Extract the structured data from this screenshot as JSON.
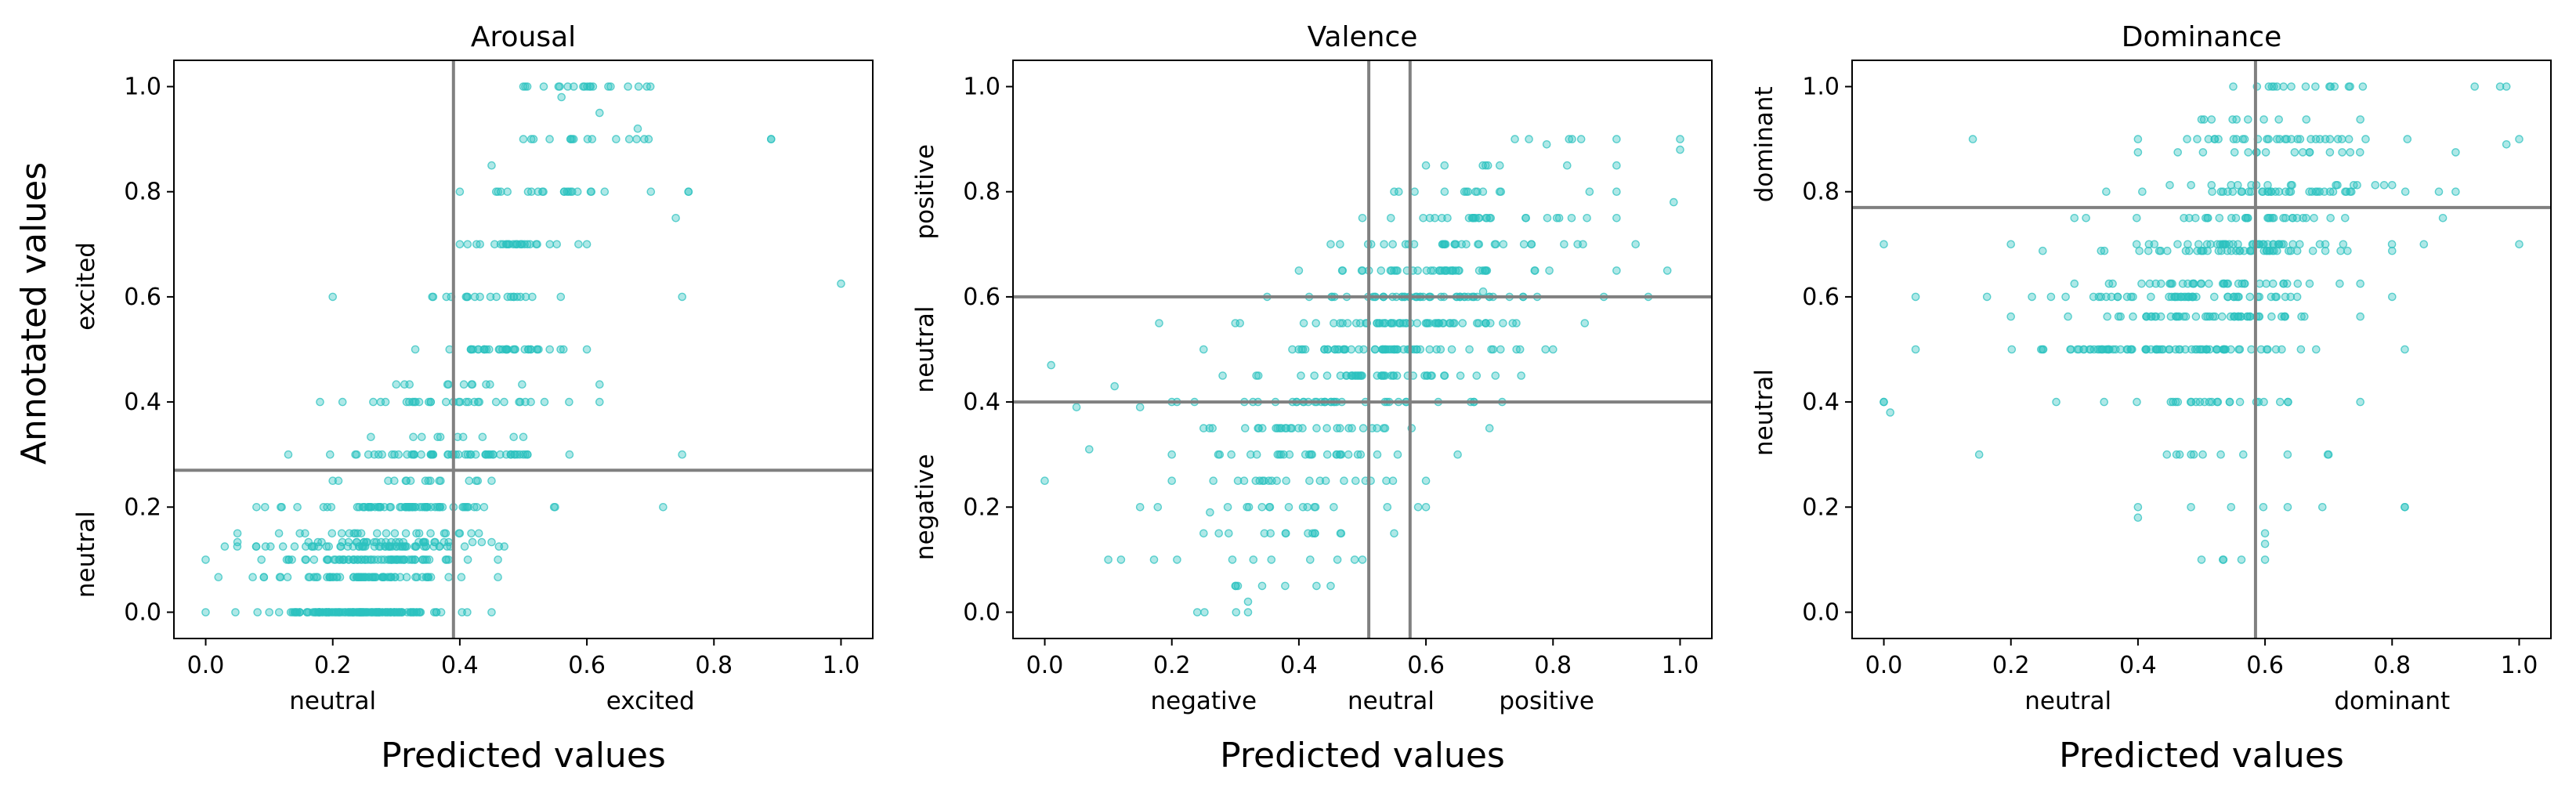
{
  "figure": {
    "shared_ylabel": "Annotated values",
    "marker_color": "#2cc2bf",
    "threshold_color": "#808080"
  },
  "chart_data": [
    {
      "type": "scatter",
      "title": "Arousal",
      "xlabel": "Predicted values",
      "ylabel": "Annotated values",
      "xlim": [
        -0.05,
        1.05
      ],
      "ylim": [
        -0.05,
        1.05
      ],
      "xticks": [
        0.0,
        0.2,
        0.4,
        0.6,
        0.8,
        1.0
      ],
      "xtick_labels": [
        "0.0",
        "0.2",
        "0.4",
        "0.6",
        "0.8",
        "1.0"
      ],
      "yticks": [
        0.0,
        0.2,
        0.4,
        0.6,
        0.8,
        1.0
      ],
      "ytick_labels": [
        "0.0",
        "0.2",
        "0.4",
        "0.6",
        "0.8",
        "1.0"
      ],
      "threshold_x": [
        0.39
      ],
      "threshold_y": [
        0.27
      ],
      "x_region_labels": [
        {
          "text": "neutral",
          "at": 0.2
        },
        {
          "text": "excited",
          "at": 0.7
        }
      ],
      "y_region_labels": [
        {
          "text": "neutral",
          "at": 0.11
        },
        {
          "text": "excited",
          "at": 0.62
        }
      ],
      "grid": false,
      "clusters": [
        {
          "y": 0.0,
          "x_min": 0.0,
          "x_max": 0.45,
          "x_mean": 0.24,
          "x_sd": 0.07,
          "count": 140
        },
        {
          "y": 0.0667,
          "x_min": 0.02,
          "x_max": 0.46,
          "x_mean": 0.26,
          "x_sd": 0.07,
          "count": 70
        },
        {
          "y": 0.1,
          "x_min": 0.0,
          "x_max": 0.46,
          "x_mean": 0.27,
          "x_sd": 0.07,
          "count": 65
        },
        {
          "y": 0.125,
          "x_min": 0.03,
          "x_max": 0.47,
          "x_mean": 0.27,
          "x_sd": 0.07,
          "count": 55
        },
        {
          "y": 0.1333,
          "x_min": 0.05,
          "x_max": 0.45,
          "x_mean": 0.27,
          "x_sd": 0.07,
          "count": 30
        },
        {
          "y": 0.15,
          "x_min": 0.05,
          "x_max": 0.43,
          "x_mean": 0.27,
          "x_sd": 0.07,
          "count": 22
        },
        {
          "y": 0.2,
          "x_min": 0.08,
          "x_max": 0.55,
          "x_mean": 0.3,
          "x_sd": 0.08,
          "count": 70
        },
        {
          "y": 0.25,
          "x_min": 0.2,
          "x_max": 0.45,
          "x_mean": 0.35,
          "x_sd": 0.06,
          "count": 14
        },
        {
          "y": 0.3,
          "x_min": 0.13,
          "x_max": 0.75,
          "x_mean": 0.38,
          "x_sd": 0.09,
          "count": 55
        },
        {
          "y": 0.3333,
          "x_min": 0.26,
          "x_max": 0.5,
          "x_mean": 0.38,
          "x_sd": 0.06,
          "count": 8
        },
        {
          "y": 0.4,
          "x_min": 0.18,
          "x_max": 0.62,
          "x_mean": 0.4,
          "x_sd": 0.08,
          "count": 30
        },
        {
          "y": 0.4333,
          "x_min": 0.3,
          "x_max": 0.62,
          "x_mean": 0.44,
          "x_sd": 0.07,
          "count": 10
        },
        {
          "y": 0.5,
          "x_min": 0.33,
          "x_max": 0.6,
          "x_mean": 0.47,
          "x_sd": 0.05,
          "count": 35
        },
        {
          "y": 0.6,
          "x_min": 0.2,
          "x_max": 0.75,
          "x_mean": 0.47,
          "x_sd": 0.07,
          "count": 20
        },
        {
          "y": 0.7,
          "x_min": 0.4,
          "x_max": 0.6,
          "x_mean": 0.5,
          "x_sd": 0.05,
          "count": 25
        },
        {
          "y": 0.8,
          "x_min": 0.4,
          "x_max": 0.76,
          "x_mean": 0.56,
          "x_sd": 0.07,
          "count": 20
        },
        {
          "y": 0.9,
          "x_min": 0.5,
          "x_max": 0.89,
          "x_mean": 0.6,
          "x_sd": 0.06,
          "count": 14
        },
        {
          "y": 1.0,
          "x_min": 0.5,
          "x_max": 0.7,
          "x_mean": 0.6,
          "x_sd": 0.05,
          "count": 18
        }
      ],
      "scatter_points": [
        [
          1.0,
          0.625
        ],
        [
          0.89,
          0.9
        ],
        [
          0.72,
          0.2
        ],
        [
          0.76,
          0.8
        ],
        [
          0.74,
          0.75
        ],
        [
          0.62,
          0.95
        ],
        [
          0.68,
          0.92
        ],
        [
          0.56,
          0.98
        ],
        [
          0.45,
          0.85
        ]
      ]
    },
    {
      "type": "scatter",
      "title": "Valence",
      "xlabel": "Predicted values",
      "ylabel": "",
      "xlim": [
        -0.05,
        1.05
      ],
      "ylim": [
        -0.05,
        1.05
      ],
      "xticks": [
        0.0,
        0.2,
        0.4,
        0.6,
        0.8,
        1.0
      ],
      "xtick_labels": [
        "0.0",
        "0.2",
        "0.4",
        "0.6",
        "0.8",
        "1.0"
      ],
      "yticks": [
        0.0,
        0.2,
        0.4,
        0.6,
        0.8,
        1.0
      ],
      "ytick_labels": [
        "0.0",
        "0.2",
        "0.4",
        "0.6",
        "0.8",
        "1.0"
      ],
      "threshold_x": [
        0.51,
        0.575
      ],
      "threshold_y": [
        0.4,
        0.6
      ],
      "x_region_labels": [
        {
          "text": "negative",
          "at": 0.25
        },
        {
          "text": "neutral",
          "at": 0.545
        },
        {
          "text": "positive",
          "at": 0.79
        }
      ],
      "y_region_labels": [
        {
          "text": "negative",
          "at": 0.2
        },
        {
          "text": "neutral",
          "at": 0.5
        },
        {
          "text": "positive",
          "at": 0.8
        }
      ],
      "grid": false,
      "clusters": [
        {
          "y": 0.0,
          "x_min": 0.24,
          "x_max": 0.32,
          "x_mean": 0.28,
          "x_sd": 0.03,
          "count": 2
        },
        {
          "y": 0.05,
          "x_min": 0.3,
          "x_max": 0.45,
          "x_mean": 0.37,
          "x_sd": 0.05,
          "count": 5
        },
        {
          "y": 0.1,
          "x_min": 0.1,
          "x_max": 0.5,
          "x_mean": 0.33,
          "x_sd": 0.08,
          "count": 8
        },
        {
          "y": 0.15,
          "x_min": 0.25,
          "x_max": 0.55,
          "x_mean": 0.4,
          "x_sd": 0.07,
          "count": 12
        },
        {
          "y": 0.2,
          "x_min": 0.15,
          "x_max": 0.6,
          "x_mean": 0.38,
          "x_sd": 0.09,
          "count": 15
        },
        {
          "y": 0.25,
          "x_min": 0.2,
          "x_max": 0.6,
          "x_mean": 0.4,
          "x_sd": 0.08,
          "count": 20
        },
        {
          "y": 0.3,
          "x_min": 0.2,
          "x_max": 0.65,
          "x_mean": 0.42,
          "x_sd": 0.08,
          "count": 25
        },
        {
          "y": 0.35,
          "x_min": 0.25,
          "x_max": 0.7,
          "x_mean": 0.45,
          "x_sd": 0.08,
          "count": 28
        },
        {
          "y": 0.4,
          "x_min": 0.2,
          "x_max": 0.72,
          "x_mean": 0.47,
          "x_sd": 0.09,
          "count": 35
        },
        {
          "y": 0.45,
          "x_min": 0.28,
          "x_max": 0.75,
          "x_mean": 0.52,
          "x_sd": 0.08,
          "count": 40
        },
        {
          "y": 0.5,
          "x_min": 0.25,
          "x_max": 0.8,
          "x_mean": 0.54,
          "x_sd": 0.09,
          "count": 55
        },
        {
          "y": 0.55,
          "x_min": 0.3,
          "x_max": 0.85,
          "x_mean": 0.57,
          "x_sd": 0.09,
          "count": 55
        },
        {
          "y": 0.6,
          "x_min": 0.35,
          "x_max": 0.88,
          "x_mean": 0.6,
          "x_sd": 0.09,
          "count": 50
        },
        {
          "y": 0.65,
          "x_min": 0.4,
          "x_max": 0.9,
          "x_mean": 0.63,
          "x_sd": 0.09,
          "count": 40
        },
        {
          "y": 0.7,
          "x_min": 0.45,
          "x_max": 0.93,
          "x_mean": 0.66,
          "x_sd": 0.09,
          "count": 30
        },
        {
          "y": 0.75,
          "x_min": 0.5,
          "x_max": 0.9,
          "x_mean": 0.68,
          "x_sd": 0.08,
          "count": 25
        },
        {
          "y": 0.8,
          "x_min": 0.55,
          "x_max": 0.9,
          "x_mean": 0.7,
          "x_sd": 0.07,
          "count": 12
        },
        {
          "y": 0.85,
          "x_min": 0.6,
          "x_max": 0.9,
          "x_mean": 0.72,
          "x_sd": 0.06,
          "count": 6
        },
        {
          "y": 0.9,
          "x_min": 0.74,
          "x_max": 0.9,
          "x_mean": 0.8,
          "x_sd": 0.05,
          "count": 3
        }
      ],
      "scatter_points": [
        [
          0.0,
          0.25
        ],
        [
          0.01,
          0.47
        ],
        [
          0.05,
          0.39
        ],
        [
          0.07,
          0.31
        ],
        [
          0.11,
          0.43
        ],
        [
          0.12,
          0.1
        ],
        [
          0.15,
          0.39
        ],
        [
          0.18,
          0.55
        ],
        [
          0.26,
          0.19
        ],
        [
          0.32,
          0.02
        ],
        [
          1.0,
          0.9
        ],
        [
          1.0,
          0.88
        ],
        [
          0.98,
          0.65
        ],
        [
          0.99,
          0.78
        ],
        [
          0.95,
          0.6
        ],
        [
          0.83,
          0.9
        ],
        [
          0.79,
          0.89
        ],
        [
          0.69,
          0.61
        ]
      ]
    },
    {
      "type": "scatter",
      "title": "Dominance",
      "xlabel": "Predicted values",
      "ylabel": "",
      "xlim": [
        -0.05,
        1.05
      ],
      "ylim": [
        -0.05,
        1.05
      ],
      "xticks": [
        0.0,
        0.2,
        0.4,
        0.6,
        0.8,
        1.0
      ],
      "xtick_labels": [
        "0.0",
        "0.2",
        "0.4",
        "0.6",
        "0.8",
        "1.0"
      ],
      "yticks": [
        0.0,
        0.2,
        0.4,
        0.6,
        0.8,
        1.0
      ],
      "ytick_labels": [
        "0.0",
        "0.2",
        "0.4",
        "0.6",
        "0.8",
        "1.0"
      ],
      "threshold_x": [
        0.585
      ],
      "threshold_y": [
        0.77
      ],
      "x_region_labels": [
        {
          "text": "neutral",
          "at": 0.29
        },
        {
          "text": "dominant",
          "at": 0.8
        }
      ],
      "y_region_labels": [
        {
          "text": "neutral",
          "at": 0.38
        },
        {
          "text": "dominant",
          "at": 0.89
        }
      ],
      "grid": false,
      "clusters": [
        {
          "y": 0.1,
          "x_min": 0.5,
          "x_max": 0.6,
          "x_mean": 0.55,
          "x_sd": 0.03,
          "count": 3
        },
        {
          "y": 0.2,
          "x_min": 0.4,
          "x_max": 0.82,
          "x_mean": 0.56,
          "x_sd": 0.08,
          "count": 5
        },
        {
          "y": 0.3,
          "x_min": 0.15,
          "x_max": 0.7,
          "x_mean": 0.5,
          "x_sd": 0.09,
          "count": 10
        },
        {
          "y": 0.4,
          "x_min": 0.0,
          "x_max": 0.75,
          "x_mean": 0.48,
          "x_sd": 0.1,
          "count": 25
        },
        {
          "y": 0.5,
          "x_min": 0.05,
          "x_max": 0.82,
          "x_mean": 0.45,
          "x_sd": 0.1,
          "count": 80
        },
        {
          "y": 0.5625,
          "x_min": 0.2,
          "x_max": 0.75,
          "x_mean": 0.5,
          "x_sd": 0.08,
          "count": 50
        },
        {
          "y": 0.6,
          "x_min": 0.05,
          "x_max": 0.8,
          "x_mean": 0.48,
          "x_sd": 0.1,
          "count": 50
        },
        {
          "y": 0.625,
          "x_min": 0.3,
          "x_max": 0.75,
          "x_mean": 0.52,
          "x_sd": 0.08,
          "count": 35
        },
        {
          "y": 0.6875,
          "x_min": 0.25,
          "x_max": 0.8,
          "x_mean": 0.55,
          "x_sd": 0.09,
          "count": 40
        },
        {
          "y": 0.7,
          "x_min": 0.2,
          "x_max": 0.85,
          "x_mean": 0.57,
          "x_sd": 0.09,
          "count": 40
        },
        {
          "y": 0.75,
          "x_min": 0.3,
          "x_max": 0.88,
          "x_mean": 0.58,
          "x_sd": 0.09,
          "count": 30
        },
        {
          "y": 0.8,
          "x_min": 0.35,
          "x_max": 0.9,
          "x_mean": 0.62,
          "x_sd": 0.09,
          "count": 35
        },
        {
          "y": 0.8125,
          "x_min": 0.45,
          "x_max": 0.8,
          "x_mean": 0.64,
          "x_sd": 0.07,
          "count": 15
        },
        {
          "y": 0.875,
          "x_min": 0.4,
          "x_max": 0.9,
          "x_mean": 0.62,
          "x_sd": 0.08,
          "count": 15
        },
        {
          "y": 0.9,
          "x_min": 0.4,
          "x_max": 1.0,
          "x_mean": 0.65,
          "x_sd": 0.1,
          "count": 30
        },
        {
          "y": 0.9375,
          "x_min": 0.5,
          "x_max": 0.75,
          "x_mean": 0.6,
          "x_sd": 0.06,
          "count": 8
        },
        {
          "y": 1.0,
          "x_min": 0.55,
          "x_max": 0.98,
          "x_mean": 0.65,
          "x_sd": 0.06,
          "count": 15
        }
      ],
      "scatter_points": [
        [
          0.0,
          0.4
        ],
        [
          0.01,
          0.38
        ],
        [
          0.0,
          0.7
        ],
        [
          0.14,
          0.9
        ],
        [
          0.93,
          1.0
        ],
        [
          0.97,
          1.0
        ],
        [
          1.0,
          0.7
        ],
        [
          0.98,
          0.89
        ],
        [
          0.82,
          0.2
        ],
        [
          0.4,
          0.18
        ],
        [
          0.6,
          0.15
        ],
        [
          0.6,
          0.13
        ]
      ]
    }
  ]
}
